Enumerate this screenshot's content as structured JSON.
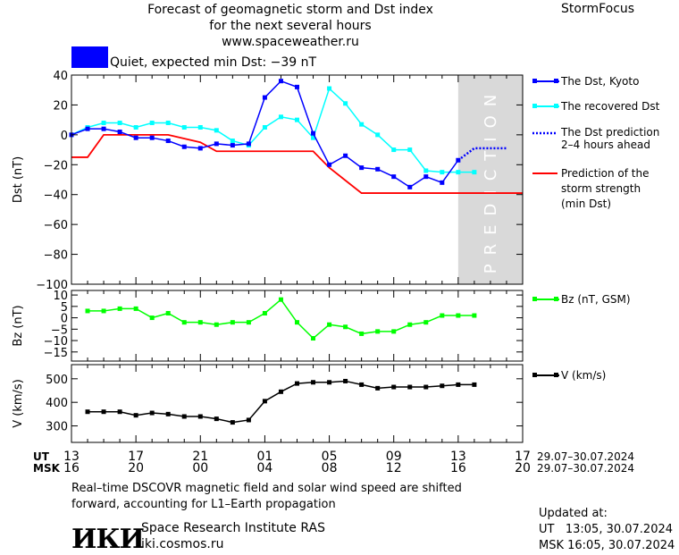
{
  "header": {
    "title_line1": "Forecast of geomagnetic storm and Dst index",
    "title_line2": "for the next several hours",
    "website": "www.spaceweather.ru",
    "brand": "StormFocus",
    "status_text": "Quiet, expected min Dst: −39 nT",
    "status_color": "#0000ff"
  },
  "legend": {
    "dst_kyoto": "The Dst, Kyoto",
    "dst_recovered": "The recovered Dst",
    "dst_prediction_line1": "The Dst prediction",
    "dst_prediction_line2": "2–4 hours ahead",
    "storm_line1": "Prediction of the",
    "storm_line2": "storm strength",
    "storm_line3": "(min Dst)",
    "bz": "Bz (nT, GSM)",
    "v": "V (km/s)"
  },
  "prediction_label": "PREDICTION",
  "time_axis": {
    "ut_label": "UT",
    "msk_label": "MSK",
    "ut_ticks": [
      "13",
      "17",
      "21",
      "01",
      "05",
      "09",
      "13",
      "17"
    ],
    "msk_ticks": [
      "16",
      "20",
      "00",
      "04",
      "08",
      "12",
      "16",
      "20"
    ],
    "date_range_ut": "29.07–30.07.2024",
    "date_range_msk": "29.07–30.07.2024"
  },
  "footer": {
    "note_line1": "Real–time DSCOVR magnetic field and solar wind speed are shifted",
    "note_line2": "forward, accounting for L1–Earth propagation",
    "institute": "Space Research Institute RAS",
    "institute_site": "iki.cosmos.ru",
    "logo_text": "ИКИ",
    "updated_label": "Updated at:",
    "updated_ut": "UT   13:05, 30.07.2024",
    "updated_msk": "MSK 16:05, 30.07.2024"
  },
  "chart_data": [
    {
      "type": "line",
      "ylabel": "Dst (nT)",
      "ylim": [
        -100,
        40
      ],
      "yticks": [
        40,
        20,
        0,
        -20,
        -40,
        -60,
        -80,
        -100
      ],
      "x_unit": "hours since 13:00 UT 29.07.2024",
      "xlim": [
        0,
        28
      ],
      "prediction_region": [
        24,
        28
      ],
      "colors": {
        "kyoto": "#0000ff",
        "recovered": "#00ffff",
        "prediction": "#0000ff",
        "storm": "#ff0000"
      },
      "series": [
        {
          "name": "The Dst, Kyoto",
          "x": [
            0,
            1,
            2,
            3,
            4,
            5,
            6,
            7,
            8,
            9,
            10,
            11,
            12,
            13,
            14,
            15,
            16,
            17,
            18,
            19,
            20,
            21,
            22,
            23,
            24
          ],
          "values": [
            0,
            4,
            4,
            2,
            -2,
            -2,
            -4,
            -8,
            -9,
            -6,
            -7,
            -6,
            25,
            36,
            32,
            1,
            -20,
            -14,
            -22,
            -23,
            -28,
            -35,
            -28,
            -32,
            -17
          ]
        },
        {
          "name": "The recovered Dst",
          "x": [
            0,
            1,
            2,
            3,
            4,
            5,
            6,
            7,
            8,
            9,
            10,
            11,
            12,
            13,
            14,
            15,
            16,
            17,
            18,
            19,
            20,
            21,
            22,
            23,
            24,
            25
          ],
          "values": [
            0,
            5,
            8,
            8,
            5,
            8,
            8,
            5,
            5,
            3,
            -4,
            -7,
            5,
            12,
            10,
            -2,
            31,
            21,
            7,
            0,
            -10,
            -10,
            -24,
            -25,
            -25,
            -25
          ]
        },
        {
          "name": "The Dst prediction 2–4 hours ahead",
          "x": [
            24,
            25,
            26,
            27
          ],
          "values": [
            -17,
            -9,
            -9,
            -9
          ]
        },
        {
          "name": "Prediction of the storm strength (min Dst)",
          "x": [
            -1,
            1,
            2,
            6,
            8,
            9,
            15,
            16,
            18,
            28
          ],
          "values": [
            -15,
            -15,
            0,
            0,
            -5,
            -11,
            -11,
            -22,
            -39,
            -39
          ]
        }
      ]
    },
    {
      "type": "line",
      "ylabel": "Bz (nT)",
      "ylim": [
        -19,
        12
      ],
      "yticks": [
        10,
        5,
        0,
        -5,
        -10,
        -15
      ],
      "xlim": [
        0,
        28
      ],
      "color": "#00ff00",
      "series": [
        {
          "name": "Bz (nT, GSM)",
          "x": [
            1,
            2,
            3,
            4,
            5,
            6,
            7,
            8,
            9,
            10,
            11,
            12,
            13,
            14,
            15,
            16,
            17,
            18,
            19,
            20,
            21,
            22,
            23,
            24,
            25
          ],
          "values": [
            3,
            3,
            4,
            4,
            0,
            2,
            -2,
            -2,
            -3,
            -2,
            -2,
            2,
            8,
            -2,
            -9,
            -3,
            -4,
            -7,
            -6,
            -6,
            -3,
            -2,
            1,
            1,
            1
          ]
        }
      ]
    },
    {
      "type": "line",
      "ylabel": "V (km/s)",
      "ylim": [
        230,
        560
      ],
      "yticks": [
        500,
        400,
        300
      ],
      "xlim": [
        0,
        28
      ],
      "color": "#000000",
      "series": [
        {
          "name": "V (km/s)",
          "x": [
            1,
            2,
            3,
            4,
            5,
            6,
            7,
            8,
            9,
            10,
            11,
            12,
            13,
            14,
            15,
            16,
            17,
            18,
            19,
            20,
            21,
            22,
            23,
            24,
            25
          ],
          "values": [
            360,
            360,
            360,
            345,
            355,
            350,
            340,
            340,
            330,
            315,
            325,
            405,
            445,
            480,
            485,
            485,
            490,
            475,
            460,
            465,
            465,
            465,
            470,
            475,
            475
          ]
        }
      ]
    }
  ]
}
